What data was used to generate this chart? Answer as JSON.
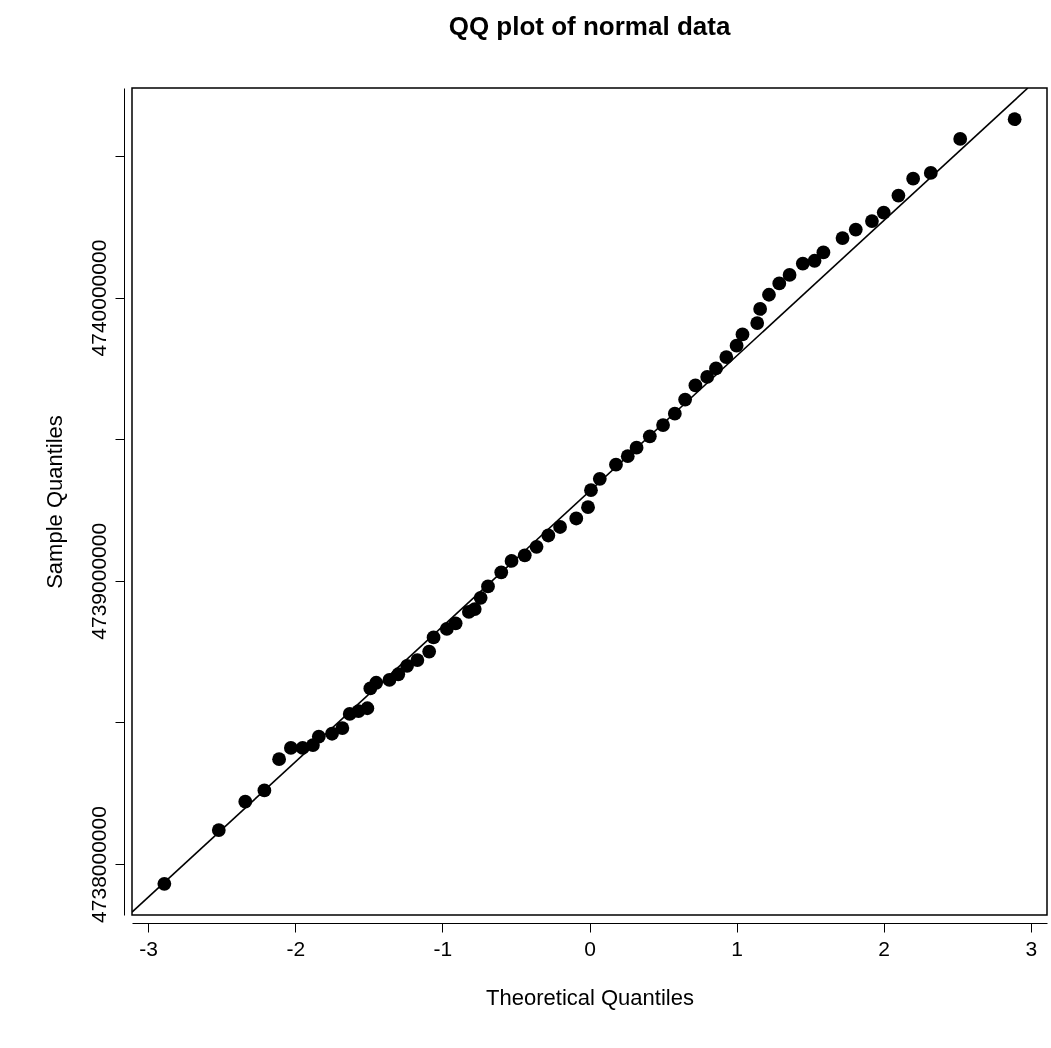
{
  "chart_data": {
    "type": "scatter",
    "title": "QQ plot of normal data",
    "xlabel": "Theoretical Quantiles",
    "ylabel": "Sample Quantiles",
    "xlim": [
      -3.11,
      3.11
    ],
    "xticks": [
      -3,
      -2,
      -1,
      0,
      1,
      2,
      3
    ],
    "ylim": [
      4737820000,
      4740740000
    ],
    "yticks": [
      4738000000,
      {
        "value": 4738500000,
        "label": null
      },
      4739000000,
      {
        "value": 4739500000,
        "label": null
      },
      4740000000,
      {
        "value": 4740500000,
        "label": null
      }
    ],
    "grid": false,
    "marker": "circle",
    "series": [
      {
        "color": "#000000",
        "x": [
          -2.89,
          -2.52,
          -2.34,
          -2.21,
          -2.11,
          -2.03,
          -1.95,
          -1.88,
          -1.84,
          -1.75,
          -1.68,
          -1.63,
          -1.57,
          -1.51,
          -1.49,
          -1.45,
          -1.36,
          -1.3,
          -1.24,
          -1.17,
          -1.09,
          -1.06,
          -0.97,
          -0.91,
          -0.82,
          -0.78,
          -0.74,
          -0.69,
          -0.6,
          -0.53,
          -0.44,
          -0.36,
          -0.28,
          -0.2,
          -0.09,
          -0.01,
          0.01,
          0.07,
          0.18,
          0.26,
          0.32,
          0.41,
          0.5,
          0.58,
          0.65,
          0.72,
          0.8,
          0.86,
          0.93,
          1.0,
          1.04,
          1.14,
          1.16,
          1.22,
          1.29,
          1.36,
          1.45,
          1.53,
          1.59,
          1.72,
          1.81,
          1.92,
          2.0,
          2.1,
          2.2,
          2.32,
          2.52,
          2.89
        ],
        "values": [
          4737930000,
          4738120000,
          4738220000,
          4738260000,
          4738370000,
          4738410000,
          4738410000,
          4738420000,
          4738450000,
          4738460000,
          4738480000,
          4738530000,
          4738540000,
          4738550000,
          4738620000,
          4738640000,
          4738650000,
          4738670000,
          4738700000,
          4738720000,
          4738750000,
          4738800000,
          4738830000,
          4738850000,
          4738890000,
          4738900000,
          4738940000,
          4738980000,
          4739030000,
          4739070000,
          4739090000,
          4739120000,
          4739160000,
          4739190000,
          4739220000,
          4739260000,
          4739320000,
          4739360000,
          4739410000,
          4739440000,
          4739470000,
          4739510000,
          4739550000,
          4739590000,
          4739640000,
          4739690000,
          4739720000,
          4739750000,
          4739790000,
          4739830000,
          4739870000,
          4739910000,
          4739960000,
          4740010000,
          4740050000,
          4740080000,
          4740120000,
          4740130000,
          4740160000,
          4740210000,
          4740240000,
          4740270000,
          4740300000,
          4740360000,
          4740420000,
          4740440000,
          4740560000,
          4740630000
        ]
      },
      {
        "type": "line",
        "color": "#000000",
        "line_style": "solid",
        "marker": "none",
        "x": [
          -3.11,
          2.98
        ],
        "values": [
          4737830000,
          4740740000
        ]
      }
    ]
  }
}
